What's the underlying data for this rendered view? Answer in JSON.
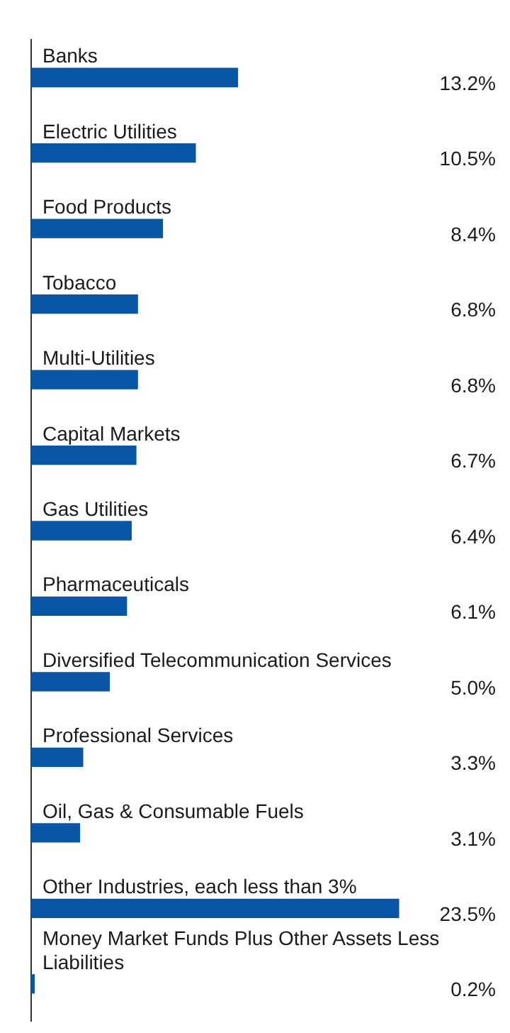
{
  "chart_data": {
    "type": "bar",
    "orientation": "horizontal",
    "categories": [
      "Banks",
      "Electric Utilities",
      "Food Products",
      "Tobacco",
      "Multi-Utilities",
      "Capital Markets",
      "Gas Utilities",
      "Pharmaceuticals",
      "Diversified Telecommunication Services",
      "Professional Services",
      "Oil, Gas & Consumable Fuels",
      "Other Industries, each less than 3%",
      "Money Market Funds Plus Other Assets Less Liabilities"
    ],
    "values": [
      13.2,
      10.5,
      8.4,
      6.8,
      6.8,
      6.7,
      6.4,
      6.1,
      5.0,
      3.3,
      3.1,
      23.5,
      0.2
    ],
    "value_labels": [
      "13.2%",
      "10.5%",
      "8.4%",
      "6.8%",
      "6.8%",
      "6.7%",
      "6.4%",
      "6.1%",
      "5.0%",
      "3.3%",
      "3.1%",
      "23.5%",
      "0.2%"
    ],
    "color": "#0a56a6",
    "legend": false
  }
}
